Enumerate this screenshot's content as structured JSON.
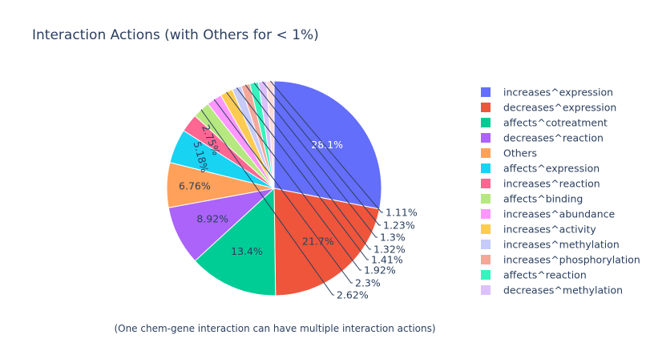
{
  "chart_data": {
    "type": "pie",
    "title": "Interaction Actions (with Others for < 1%)",
    "annotation": "(One chem-gene interaction can have multiple interaction actions)",
    "slices": [
      {
        "label": "increases^expression",
        "value": 28.1,
        "text": "28.1%",
        "color": "#636efa"
      },
      {
        "label": "decreases^expression",
        "value": 21.7,
        "text": "21.7%",
        "color": "#ef553b"
      },
      {
        "label": "affects^cotreatment",
        "value": 13.4,
        "text": "13.4%",
        "color": "#00cc96"
      },
      {
        "label": "decreases^reaction",
        "value": 8.92,
        "text": "8.92%",
        "color": "#ab63fa"
      },
      {
        "label": "Others",
        "value": 6.76,
        "text": "6.76%",
        "color": "#ffa15a"
      },
      {
        "label": "affects^expression",
        "value": 5.18,
        "text": "5.18%",
        "color": "#19d3f3"
      },
      {
        "label": "increases^reaction",
        "value": 2.75,
        "text": "2.75%",
        "color": "#ff6692"
      },
      {
        "label": "affects^binding",
        "value": 2.62,
        "text": "2.62%",
        "color": "#b6e880"
      },
      {
        "label": "increases^abundance",
        "value": 2.3,
        "text": "2.3%",
        "color": "#ff97ff"
      },
      {
        "label": "increases^activity",
        "value": 1.92,
        "text": "1.92%",
        "color": "#fecb52"
      },
      {
        "label": "increases^methylation",
        "value": 1.41,
        "text": "1.41%",
        "color": "#c6cbf8"
      },
      {
        "label": "increases^phosphorylation",
        "value": 1.32,
        "text": "1.32%",
        "color": "#f4a899"
      },
      {
        "label": "affects^reaction",
        "value": 1.3,
        "text": "1.3%",
        "color": "#33f5be"
      },
      {
        "label": "decreases^methylation",
        "value": 1.23,
        "text": "1.23%",
        "color": "#dcc1fd"
      },
      {
        "label": "",
        "value": 1.11,
        "text": "1.11%",
        "color": "#ffdcd8"
      }
    ],
    "legend_position": "right"
  }
}
